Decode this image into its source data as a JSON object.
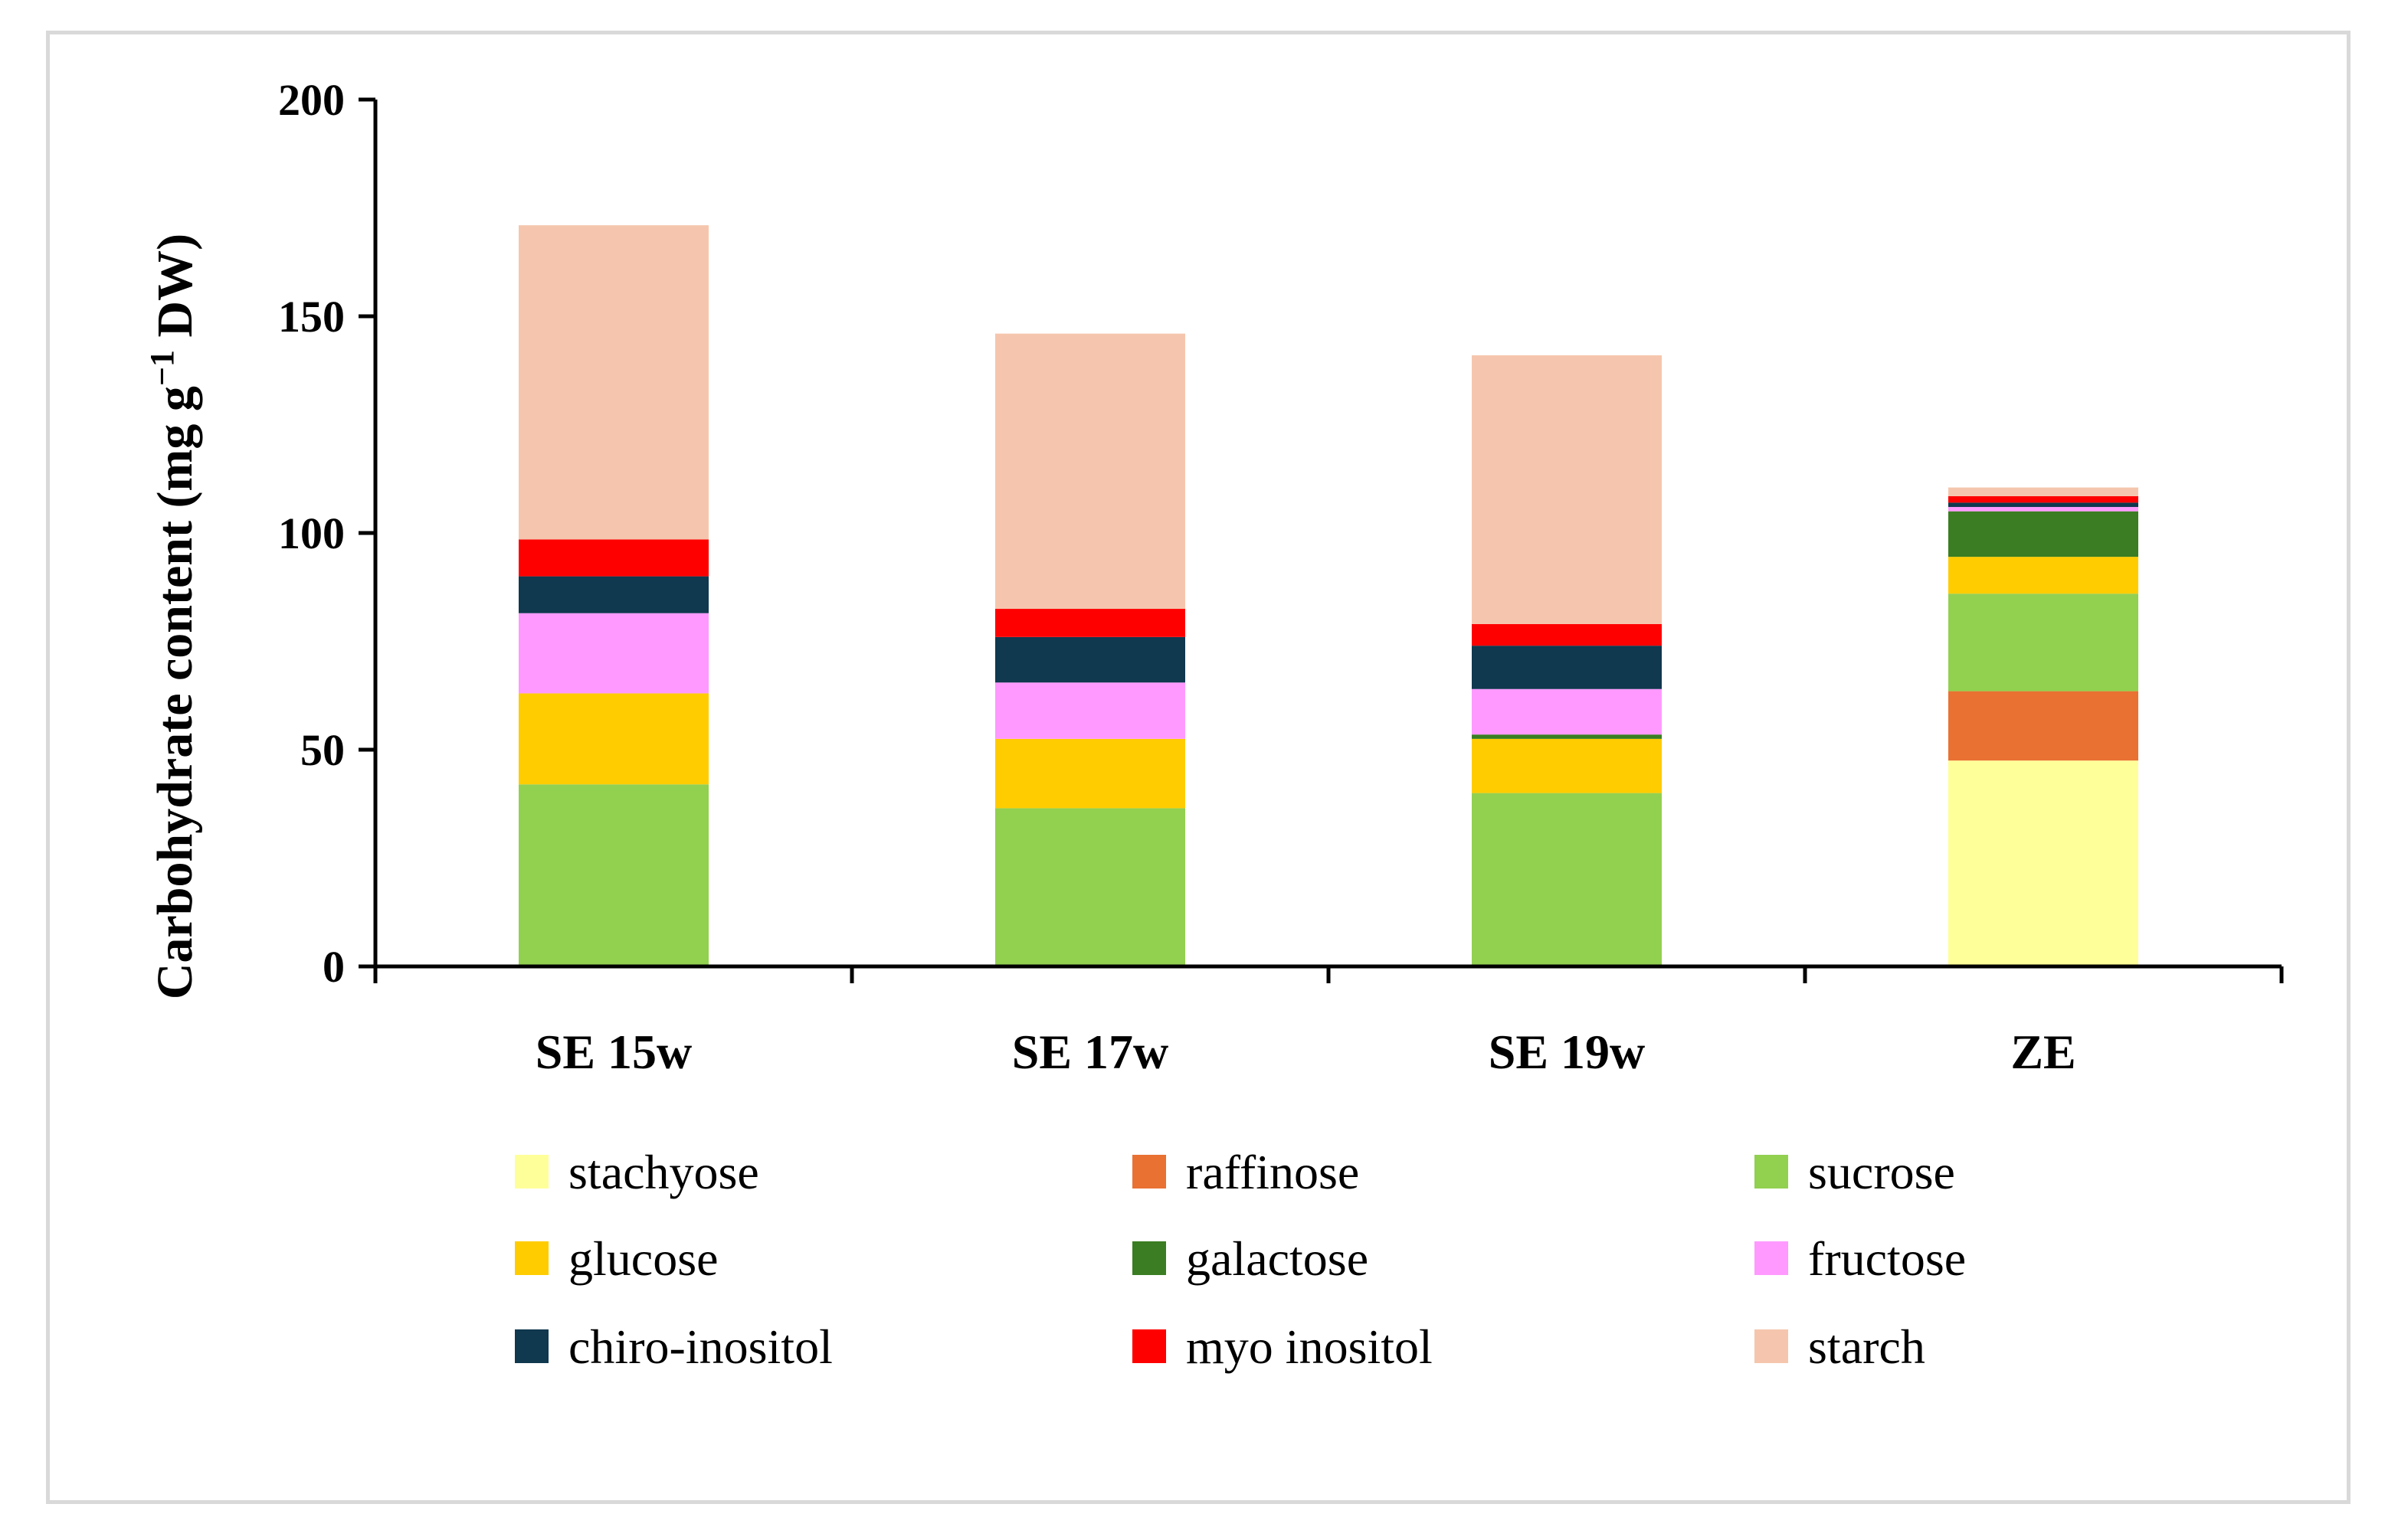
{
  "chart_data": {
    "type": "bar",
    "stacked": true,
    "title": "",
    "xlabel": "",
    "ylabel": "Carbohydrate content (mg g",
    "ylabel_sup": "−1",
    "ylabel_suffix": " DW)",
    "ylim": [
      0,
      200
    ],
    "yticks": [
      0,
      50,
      100,
      150,
      200
    ],
    "ytick_labels": [
      "0",
      "50",
      "100",
      "150",
      "200"
    ],
    "grid": false,
    "legend_position": "bottom",
    "categories": [
      "SE 15w",
      "SE 17w",
      "SE 19w",
      "ZE"
    ],
    "series": [
      {
        "name": "stachyose",
        "color": "#FFFF99",
        "values": [
          0,
          0,
          0,
          47.5
        ]
      },
      {
        "name": "raffinose",
        "color": "#E97132",
        "values": [
          0,
          0,
          0,
          16
        ]
      },
      {
        "name": "sucrose",
        "color": "#92D050",
        "values": [
          42,
          36.5,
          40,
          22.5
        ]
      },
      {
        "name": "glucose",
        "color": "#FFCC00",
        "values": [
          21,
          16,
          12.5,
          8.5
        ]
      },
      {
        "name": "galactose",
        "color": "#3A7D22",
        "values": [
          0,
          0,
          1,
          10.5
        ]
      },
      {
        "name": "fructose",
        "color": "#FF99FF",
        "values": [
          18.5,
          13,
          10.5,
          1
        ]
      },
      {
        "name": "chiro-inositol",
        "color": "#10384F",
        "values": [
          8.5,
          10.5,
          10,
          1
        ]
      },
      {
        "name": "myo inositol",
        "color": "#FF0000",
        "values": [
          8.5,
          6.5,
          5,
          1.5
        ]
      },
      {
        "name": "starch",
        "color": "#F5C6AD",
        "values": [
          72.5,
          63.5,
          62,
          2
        ]
      }
    ]
  }
}
